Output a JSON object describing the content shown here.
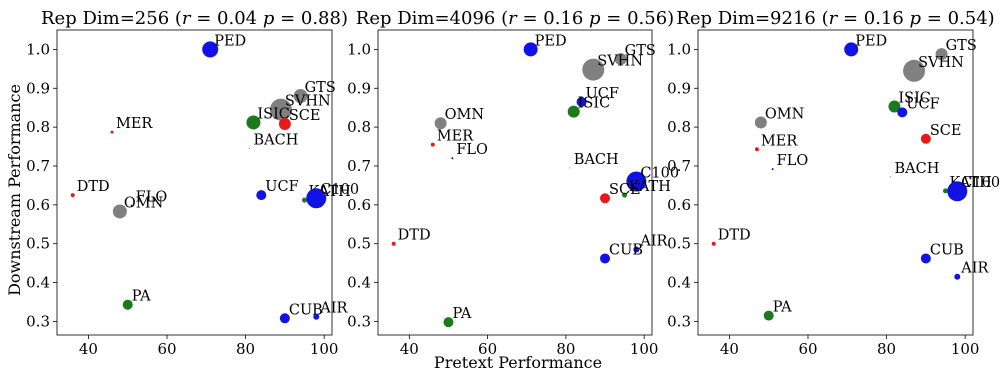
{
  "figure": {
    "xlabel": "Pretext Performance",
    "ylabel": "Downstream Performance"
  },
  "colors": {
    "red": "#e8191b",
    "green": "#1b7a1b",
    "blue": "#1212e6",
    "gray": "#808080"
  },
  "chart_data": [
    {
      "type": "scatter",
      "title": "Rep Dim=256 (r = 0.04 p = 0.88)",
      "title_parts": {
        "prefix": "Rep Dim=256 (",
        "r_sym": "r",
        "r_val": " = 0.04 ",
        "p_sym": "p",
        "p_val": " = 0.88)"
      },
      "xlim": [
        32,
        102
      ],
      "ylim": [
        0.265,
        1.05
      ],
      "xticks": [
        40,
        60,
        80,
        100
      ],
      "yticks": [
        0.3,
        0.4,
        0.5,
        0.6,
        0.7,
        0.8,
        0.9,
        1.0
      ],
      "points": [
        {
          "label": "PED",
          "x": 71,
          "y": 1.0,
          "color": "blue",
          "size": 8
        },
        {
          "label": "GTS",
          "x": 94,
          "y": 0.88,
          "color": "gray",
          "size": 7
        },
        {
          "label": "SVHN",
          "x": 89,
          "y": 0.845,
          "color": "gray",
          "size": 11
        },
        {
          "label": "ISIC",
          "x": 82,
          "y": 0.812,
          "color": "green",
          "size": 7
        },
        {
          "label": "SCE",
          "x": 90,
          "y": 0.808,
          "color": "red",
          "size": 6
        },
        {
          "label": "MER",
          "x": 46,
          "y": 0.787,
          "color": "red",
          "size": 1.5
        },
        {
          "label": "BACH",
          "x": 81,
          "y": 0.745,
          "color": "gray",
          "size": 0.6
        },
        {
          "label": "DTD",
          "x": 36,
          "y": 0.625,
          "color": "red",
          "size": 2
        },
        {
          "label": "UCF",
          "x": 84,
          "y": 0.625,
          "color": "blue",
          "size": 5
        },
        {
          "label": "KATH",
          "x": 95,
          "y": 0.612,
          "color": "green",
          "size": 2.5
        },
        {
          "label": "C100",
          "x": 98,
          "y": 0.617,
          "color": "blue",
          "size": 10
        },
        {
          "label": "FLO",
          "x": 51,
          "y": 0.598,
          "color": "blue",
          "size": 1
        },
        {
          "label": "OMN",
          "x": 48,
          "y": 0.583,
          "color": "gray",
          "size": 7
        },
        {
          "label": "PA",
          "x": 50,
          "y": 0.343,
          "color": "green",
          "size": 5
        },
        {
          "label": "CUB",
          "x": 90,
          "y": 0.308,
          "color": "blue",
          "size": 5
        },
        {
          "label": "AIR",
          "x": 98,
          "y": 0.312,
          "color": "blue",
          "size": 3
        }
      ]
    },
    {
      "type": "scatter",
      "title": "Rep Dim=4096 (r = 0.16 p = 0.56)",
      "title_parts": {
        "prefix": "Rep Dim=4096 (",
        "r_sym": "r",
        "r_val": " = 0.16 ",
        "p_sym": "p",
        "p_val": " = 0.56)"
      },
      "xlim": [
        32,
        102
      ],
      "ylim": [
        0.265,
        1.05
      ],
      "xticks": [
        40,
        60,
        80,
        100
      ],
      "yticks": [
        0.3,
        0.4,
        0.5,
        0.6,
        0.7,
        0.8,
        0.9,
        1.0
      ],
      "points": [
        {
          "label": "PED",
          "x": 71,
          "y": 1.0,
          "color": "blue",
          "size": 7
        },
        {
          "label": "GTS",
          "x": 94,
          "y": 0.975,
          "color": "gray",
          "size": 6
        },
        {
          "label": "SVHN",
          "x": 87,
          "y": 0.948,
          "color": "gray",
          "size": 11
        },
        {
          "label": "UCF",
          "x": 84,
          "y": 0.865,
          "color": "blue",
          "size": 5
        },
        {
          "label": "ISIC",
          "x": 82,
          "y": 0.84,
          "color": "green",
          "size": 6
        },
        {
          "label": "OMN",
          "x": 48,
          "y": 0.81,
          "color": "gray",
          "size": 6
        },
        {
          "label": "MER",
          "x": 46,
          "y": 0.755,
          "color": "red",
          "size": 2
        },
        {
          "label": "FLO",
          "x": 51,
          "y": 0.72,
          "color": "blue",
          "size": 1
        },
        {
          "label": "BACH",
          "x": 81,
          "y": 0.695,
          "color": "gray",
          "size": 0.6
        },
        {
          "label": "C100",
          "x": 98,
          "y": 0.66,
          "color": "blue",
          "size": 10
        },
        {
          "label": "KATH",
          "x": 95,
          "y": 0.625,
          "color": "green",
          "size": 2.5
        },
        {
          "label": "SCE",
          "x": 90,
          "y": 0.617,
          "color": "red",
          "size": 5
        },
        {
          "label": "DTD",
          "x": 36,
          "y": 0.5,
          "color": "red",
          "size": 2
        },
        {
          "label": "AIR",
          "x": 98,
          "y": 0.485,
          "color": "blue",
          "size": 3
        },
        {
          "label": "CUB",
          "x": 90,
          "y": 0.462,
          "color": "blue",
          "size": 5
        },
        {
          "label": "PA",
          "x": 50,
          "y": 0.298,
          "color": "green",
          "size": 5
        }
      ]
    },
    {
      "type": "scatter",
      "title": "Rep Dim=9216 (r = 0.16 p = 0.54)",
      "title_parts": {
        "prefix": "Rep Dim=9216 (",
        "r_sym": "r",
        "r_val": " = 0.16 ",
        "p_sym": "p",
        "p_val": " = 0.54)"
      },
      "xlim": [
        32,
        102
      ],
      "ylim": [
        0.265,
        1.05
      ],
      "xticks": [
        40,
        60,
        80,
        100
      ],
      "yticks": [
        0.3,
        0.4,
        0.5,
        0.6,
        0.7,
        0.8,
        0.9,
        1.0
      ],
      "points": [
        {
          "label": "PED",
          "x": 71,
          "y": 1.0,
          "color": "blue",
          "size": 7
        },
        {
          "label": "GTS",
          "x": 94,
          "y": 0.988,
          "color": "gray",
          "size": 6
        },
        {
          "label": "SVHN",
          "x": 87,
          "y": 0.945,
          "color": "gray",
          "size": 11
        },
        {
          "label": "ISIC",
          "x": 82,
          "y": 0.853,
          "color": "green",
          "size": 6
        },
        {
          "label": "UCF",
          "x": 84,
          "y": 0.838,
          "color": "blue",
          "size": 5
        },
        {
          "label": "OMN",
          "x": 48,
          "y": 0.812,
          "color": "gray",
          "size": 6
        },
        {
          "label": "SCE",
          "x": 90,
          "y": 0.77,
          "color": "red",
          "size": 5
        },
        {
          "label": "MER",
          "x": 47,
          "y": 0.743,
          "color": "red",
          "size": 2
        },
        {
          "label": "FLO",
          "x": 51,
          "y": 0.692,
          "color": "blue",
          "size": 1
        },
        {
          "label": "BACH",
          "x": 81,
          "y": 0.672,
          "color": "gray",
          "size": 0.6
        },
        {
          "label": "KATH",
          "x": 95,
          "y": 0.636,
          "color": "green",
          "size": 2.5
        },
        {
          "label": "C100",
          "x": 98,
          "y": 0.635,
          "color": "blue",
          "size": 10
        },
        {
          "label": "DTD",
          "x": 36,
          "y": 0.5,
          "color": "red",
          "size": 2
        },
        {
          "label": "CUB",
          "x": 90,
          "y": 0.462,
          "color": "blue",
          "size": 5
        },
        {
          "label": "AIR",
          "x": 98,
          "y": 0.415,
          "color": "blue",
          "size": 3
        },
        {
          "label": "PA",
          "x": 50,
          "y": 0.315,
          "color": "green",
          "size": 5
        }
      ]
    }
  ]
}
